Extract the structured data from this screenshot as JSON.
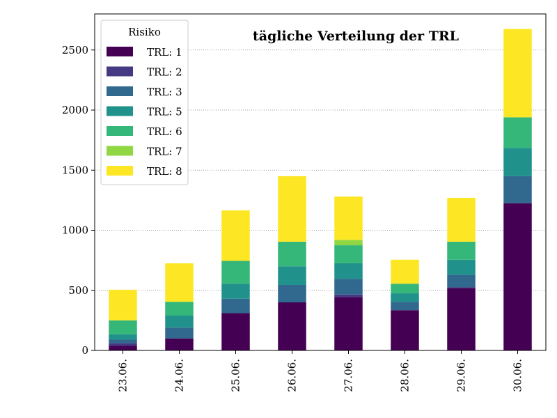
{
  "chart_data": {
    "type": "bar",
    "stacked": true,
    "title": "tägliche Verteilung der TRL",
    "xlabel": "",
    "ylabel": "",
    "categories": [
      "23.06.",
      "24.06.",
      "25.06.",
      "26.06.",
      "27.06.",
      "28.06.",
      "29.06.",
      "30.06."
    ],
    "yticks": [
      0,
      500,
      1000,
      1500,
      2000,
      2500
    ],
    "ylim": [
      0,
      2800
    ],
    "grid": "horizontal dotted",
    "legend": {
      "title": "Risiko",
      "placement": "top-left"
    },
    "series": [
      {
        "name": "TRL: 1",
        "color": "#440154",
        "values": [
          40,
          100,
          310,
          400,
          445,
          335,
          520,
          1225
        ]
      },
      {
        "name": "TRL: 2",
        "color": "#443983",
        "values": [
          20,
          0,
          0,
          0,
          20,
          0,
          5,
          0
        ]
      },
      {
        "name": "TRL: 3",
        "color": "#31688e",
        "values": [
          30,
          90,
          120,
          145,
          130,
          70,
          105,
          225
        ]
      },
      {
        "name": "TRL: 5",
        "color": "#21918c",
        "values": [
          45,
          100,
          125,
          155,
          130,
          70,
          125,
          235
        ]
      },
      {
        "name": "TRL: 6",
        "color": "#35b779",
        "values": [
          115,
          115,
          190,
          205,
          150,
          80,
          150,
          255
        ]
      },
      {
        "name": "TRL: 7",
        "color": "#90d743",
        "values": [
          0,
          0,
          0,
          0,
          45,
          0,
          0,
          0
        ]
      },
      {
        "name": "TRL: 8",
        "color": "#fde725",
        "values": [
          255,
          320,
          420,
          545,
          360,
          200,
          365,
          735
        ]
      }
    ]
  }
}
